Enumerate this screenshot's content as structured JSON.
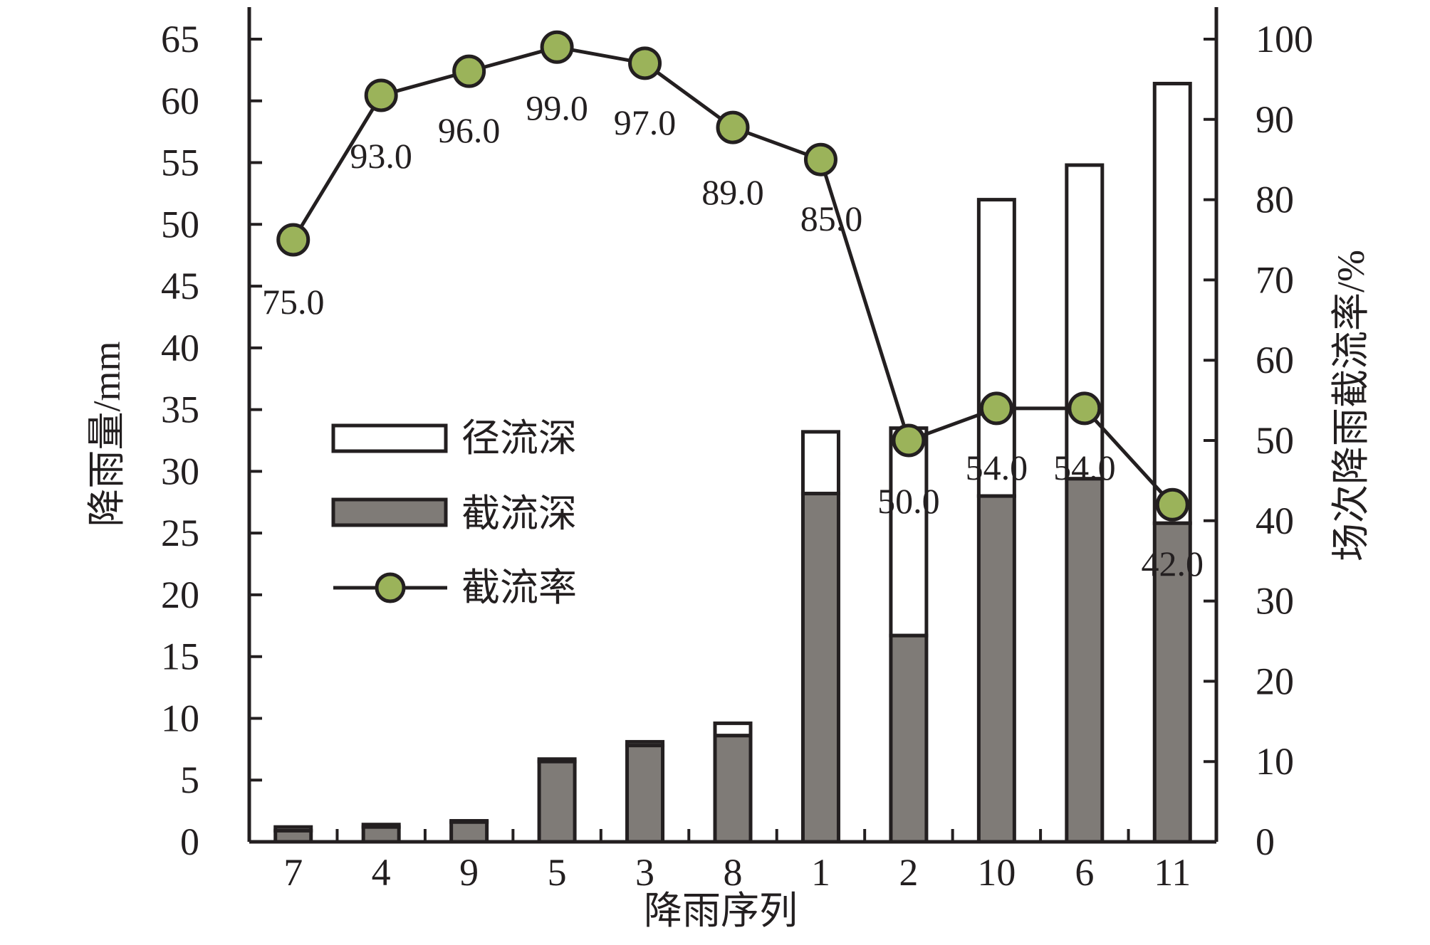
{
  "chart_data": {
    "type": "bar",
    "categories": [
      "7",
      "4",
      "9",
      "5",
      "3",
      "8",
      "1",
      "2",
      "10",
      "6",
      "11"
    ],
    "series": [
      {
        "name": "截流深",
        "type": "bar",
        "stack": "rain",
        "axis": "left",
        "values": [
          0.9,
          1.2,
          1.6,
          6.5,
          7.8,
          8.6,
          28.2,
          16.7,
          28.0,
          29.4,
          25.8
        ]
      },
      {
        "name": "径流深",
        "type": "bar",
        "stack": "rain",
        "axis": "left",
        "values": [
          0.3,
          0.2,
          0.1,
          0.2,
          0.3,
          1.0,
          5.0,
          16.8,
          24.0,
          25.4,
          35.6
        ]
      },
      {
        "name": "截流率",
        "type": "line",
        "axis": "right",
        "values": [
          75.0,
          93.0,
          96.0,
          99.0,
          97.0,
          89.0,
          85.0,
          50.0,
          54.0,
          54.0,
          42.0
        ],
        "labels": [
          "75.0",
          "93.0",
          "96.0",
          "99.0",
          "97.0",
          "89.0",
          "85.0",
          "50.0",
          "54.0",
          "54.0",
          "42.0"
        ]
      }
    ],
    "xlabel": "降雨序列",
    "ylabel": "降雨量/mm",
    "y2label": "场次降雨截流率/%",
    "ylim": [
      0,
      65
    ],
    "y2lim": [
      0,
      100
    ],
    "yticks": [
      "0",
      "5",
      "10",
      "15",
      "20",
      "25",
      "30",
      "35",
      "40",
      "45",
      "50",
      "55",
      "60",
      "65"
    ],
    "y2ticks": [
      "0",
      "10",
      "20",
      "30",
      "40",
      "50",
      "60",
      "70",
      "80",
      "90",
      "100"
    ],
    "grid": false,
    "legend_position": "center-left",
    "colors": {
      "intercept_bar": "#7f7b77",
      "runoff_bar": "#ffffff",
      "line": "#231f20",
      "marker": "#9bb35a",
      "axis": "#231f20"
    }
  }
}
